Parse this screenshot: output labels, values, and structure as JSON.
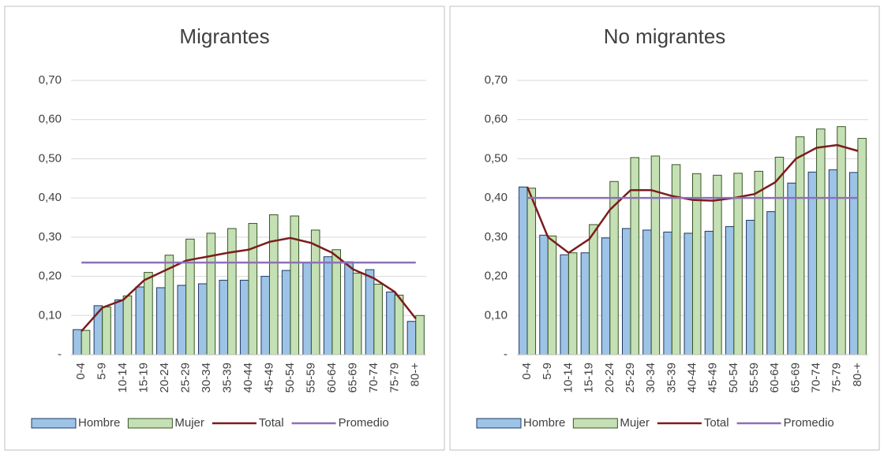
{
  "chart_data": [
    {
      "type": "bar",
      "title": "Migrantes",
      "categories": [
        "0-4",
        "5-9",
        "10-14",
        "15-19",
        "20-24",
        "25-29",
        "30-34",
        "35-39",
        "40-44",
        "45-49",
        "50-54",
        "55-59",
        "60-64",
        "65-69",
        "70-74",
        "75-79",
        "80-+"
      ],
      "series": [
        {
          "name": "Hombre",
          "type": "bar",
          "color": "#9dc3e6",
          "values": [
            0.064,
            0.125,
            0.14,
            0.173,
            0.171,
            0.177,
            0.181,
            0.19,
            0.19,
            0.2,
            0.215,
            0.235,
            0.25,
            0.237,
            0.217,
            0.16,
            0.085
          ]
        },
        {
          "name": "Mujer",
          "type": "bar",
          "color": "#c5e0b4",
          "values": [
            0.062,
            0.122,
            0.15,
            0.21,
            0.254,
            0.295,
            0.31,
            0.322,
            0.335,
            0.357,
            0.354,
            0.318,
            0.268,
            0.208,
            0.18,
            0.152,
            0.1
          ]
        },
        {
          "name": "Total",
          "type": "line",
          "color": "#7b1c1c",
          "values": [
            0.06,
            0.12,
            0.14,
            0.19,
            0.215,
            0.24,
            0.25,
            0.26,
            0.268,
            0.288,
            0.298,
            0.285,
            0.26,
            0.218,
            0.195,
            0.16,
            0.092
          ]
        },
        {
          "name": "Promedio",
          "type": "line",
          "color": "#8e6fb8",
          "values": [
            0.235,
            0.235,
            0.235,
            0.235,
            0.235,
            0.235,
            0.235,
            0.235,
            0.235,
            0.235,
            0.235,
            0.235,
            0.235,
            0.235,
            0.235,
            0.235,
            0.235
          ]
        }
      ],
      "ylim": [
        0,
        0.7
      ],
      "yticks": [
        {
          "value": 0,
          "label": "-"
        },
        {
          "value": 0.1,
          "label": "0,10"
        },
        {
          "value": 0.2,
          "label": "0,20"
        },
        {
          "value": 0.3,
          "label": "0,30"
        },
        {
          "value": 0.4,
          "label": "0,40"
        },
        {
          "value": 0.5,
          "label": "0,50"
        },
        {
          "value": 0.6,
          "label": "0,60"
        },
        {
          "value": 0.7,
          "label": "0,70"
        }
      ],
      "grid": true,
      "legend": "bottom"
    },
    {
      "type": "bar",
      "title": "No migrantes",
      "categories": [
        "0-4",
        "5-9",
        "10-14",
        "15-19",
        "20-24",
        "25-29",
        "30-34",
        "35-39",
        "40-44",
        "45-49",
        "50-54",
        "55-59",
        "60-64",
        "65-69",
        "70-74",
        "75-79",
        "80-+"
      ],
      "series": [
        {
          "name": "Hombre",
          "type": "bar",
          "color": "#9dc3e6",
          "values": [
            0.428,
            0.305,
            0.255,
            0.26,
            0.298,
            0.322,
            0.318,
            0.313,
            0.31,
            0.315,
            0.327,
            0.343,
            0.365,
            0.438,
            0.466,
            0.472,
            0.465
          ]
        },
        {
          "name": "Mujer",
          "type": "bar",
          "color": "#c5e0b4",
          "values": [
            0.425,
            0.303,
            0.26,
            0.332,
            0.442,
            0.503,
            0.507,
            0.485,
            0.462,
            0.458,
            0.463,
            0.468,
            0.504,
            0.556,
            0.576,
            0.582,
            0.552
          ]
        },
        {
          "name": "Total",
          "type": "line",
          "color": "#7b1c1c",
          "values": [
            0.428,
            0.3,
            0.26,
            0.295,
            0.37,
            0.42,
            0.42,
            0.405,
            0.395,
            0.393,
            0.4,
            0.41,
            0.44,
            0.5,
            0.528,
            0.535,
            0.52
          ]
        },
        {
          "name": "Promedio",
          "type": "line",
          "color": "#8e6fb8",
          "values": [
            0.4,
            0.4,
            0.4,
            0.4,
            0.4,
            0.4,
            0.4,
            0.4,
            0.4,
            0.4,
            0.4,
            0.4,
            0.4,
            0.4,
            0.4,
            0.4,
            0.4
          ]
        }
      ],
      "ylim": [
        0,
        0.7
      ],
      "yticks": [
        {
          "value": 0,
          "label": "-"
        },
        {
          "value": 0.1,
          "label": "0,10"
        },
        {
          "value": 0.2,
          "label": "0,20"
        },
        {
          "value": 0.3,
          "label": "0,30"
        },
        {
          "value": 0.4,
          "label": "0,40"
        },
        {
          "value": 0.5,
          "label": "0,50"
        },
        {
          "value": 0.6,
          "label": "0,60"
        },
        {
          "value": 0.7,
          "label": "0,70"
        }
      ],
      "grid": true,
      "legend": "bottom"
    }
  ]
}
